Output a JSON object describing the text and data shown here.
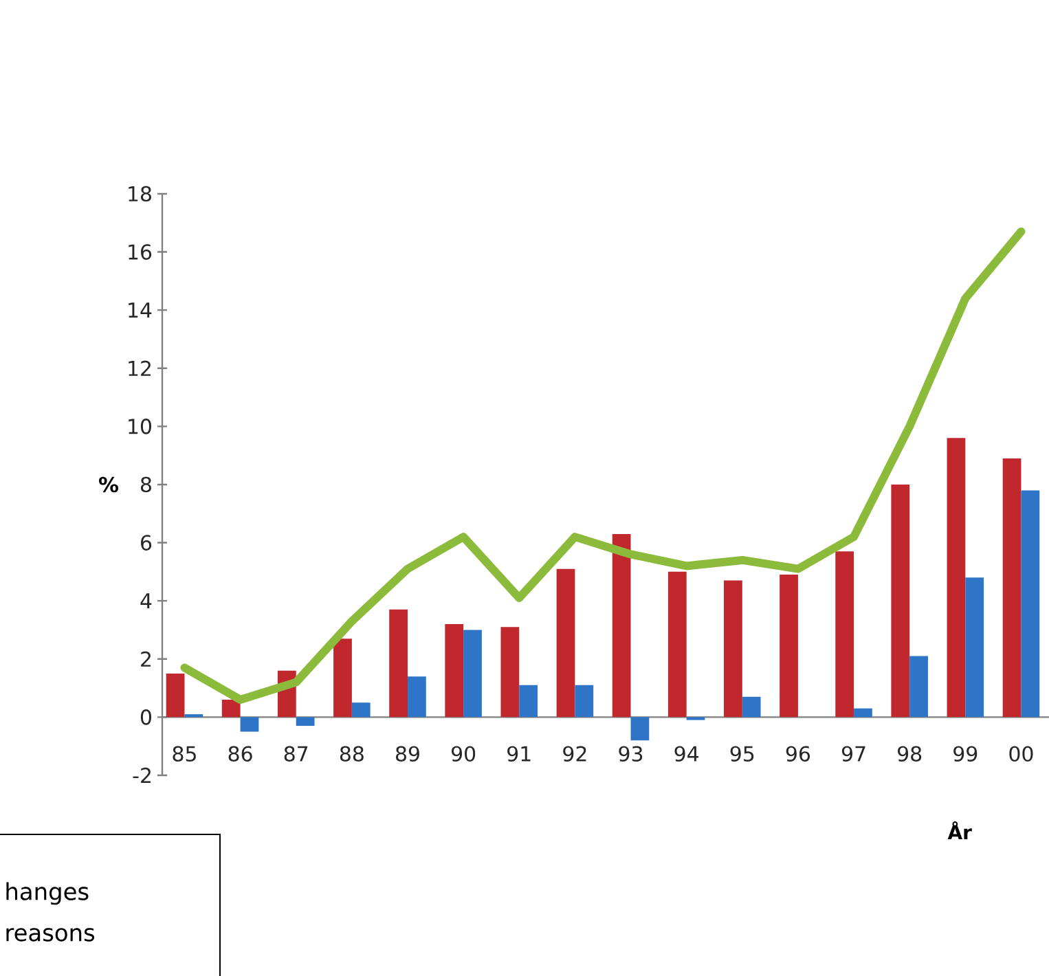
{
  "chart_data": {
    "type": "bar",
    "xlabel": "År",
    "ylabel": "%",
    "categories": [
      "85",
      "86",
      "87",
      "88",
      "89",
      "90",
      "91",
      "92",
      "93",
      "94",
      "95",
      "96",
      "97",
      "98",
      "99",
      "00"
    ],
    "series": [
      {
        "color": "#c0282d",
        "values": [
          1.5,
          0.6,
          1.6,
          2.7,
          3.7,
          3.2,
          3.1,
          5.1,
          6.3,
          5.0,
          4.7,
          4.9,
          5.7,
          8.0,
          9.6,
          8.9
        ]
      },
      {
        "color": "#2e75c8",
        "values": [
          0.1,
          -0.5,
          -0.3,
          0.5,
          1.4,
          3.0,
          1.1,
          1.1,
          -0.8,
          -0.1,
          0.7,
          0.0,
          0.3,
          2.1,
          4.8,
          7.8
        ]
      },
      {
        "type": "line",
        "color": "#8cbb3c",
        "values": [
          1.7,
          0.6,
          1.2,
          3.3,
          5.1,
          6.2,
          4.1,
          6.2,
          5.6,
          5.2,
          5.4,
          5.1,
          6.2,
          10.0,
          14.4,
          16.7
        ]
      }
    ],
    "ylim": [
      -2,
      18
    ],
    "yticks": [
      -2,
      0,
      2,
      4,
      6,
      8,
      10,
      12,
      14,
      16,
      18
    ],
    "grid": false,
    "annotations": [
      "hanges",
      "reasons"
    ]
  }
}
